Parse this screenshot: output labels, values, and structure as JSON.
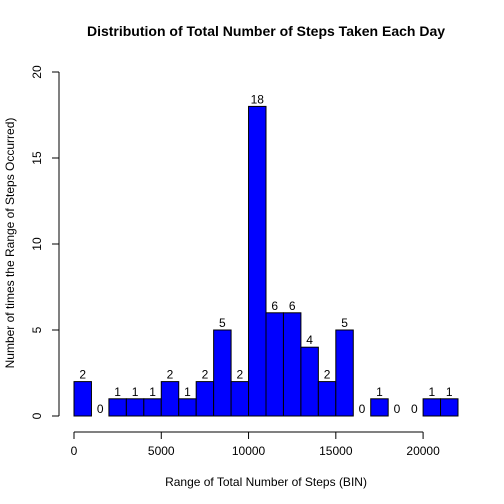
{
  "chart_data": {
    "type": "bar",
    "title": "Distribution of Total Number of Steps Taken Each Day",
    "xlabel": "Range of Total Number of Steps (BIN)",
    "ylabel": "Number of times the Range of Steps Occurred)",
    "bin_width": 1000,
    "bins_start": [
      0,
      1000,
      2000,
      3000,
      4000,
      5000,
      6000,
      7000,
      8000,
      9000,
      10000,
      11000,
      12000,
      13000,
      14000,
      15000,
      16000,
      17000,
      18000,
      19000,
      20000,
      21000
    ],
    "values": [
      2,
      0,
      1,
      1,
      1,
      2,
      1,
      2,
      5,
      2,
      18,
      6,
      6,
      4,
      2,
      5,
      0,
      1,
      0,
      0,
      1,
      1
    ],
    "xlim": [
      0,
      22000
    ],
    "ylim": [
      0,
      20
    ],
    "xticks": [
      0,
      5000,
      10000,
      15000,
      20000
    ],
    "yticks": [
      0,
      5,
      10,
      15,
      20
    ],
    "grid": false,
    "bar_color": "#0000FF",
    "bar_border_color": "#000000"
  }
}
